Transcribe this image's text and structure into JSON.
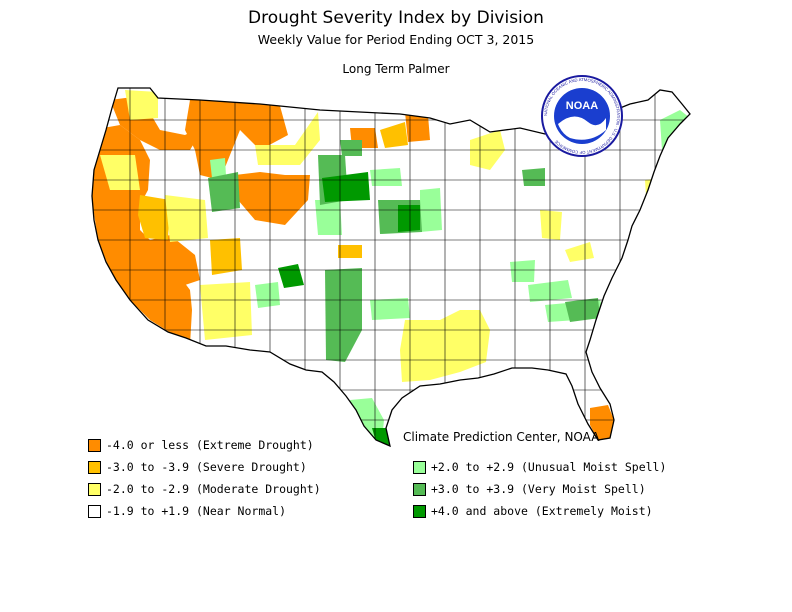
{
  "title": "Drought Severity Index by Division",
  "subtitle": "Weekly Value for Period Ending OCT  3, 2015",
  "index_name": "Long Term Palmer",
  "credit": "Climate Prediction Center, NOAA",
  "logo": {
    "text": "NOAA",
    "ring_text": "NATIONAL OCEANIC AND ATMOSPHERIC ADMINISTRATION · U.S. DEPARTMENT OF COMMERCE"
  },
  "colors": {
    "extreme_drought": "#ff8c00",
    "severe_drought": "#ffc000",
    "moderate_drought": "#ffff66",
    "near_normal": "#ffffff",
    "unusual_moist": "#99ff99",
    "very_moist": "#55bb55",
    "extremely_moist": "#009900"
  },
  "legend": [
    {
      "key": "extreme_drought",
      "label": "-4.0 or less (Extreme Drought)"
    },
    {
      "key": "severe_drought",
      "label": "-3.0 to -3.9 (Severe Drought)"
    },
    {
      "key": "moderate_drought",
      "label": "-2.0 to -2.9 (Moderate Drought)"
    },
    {
      "key": "near_normal",
      "label": "-1.9 to +1.9 (Near Normal)"
    },
    {
      "key": "unusual_moist",
      "label": "+2.0 to +2.9 (Unusual Moist Spell)"
    },
    {
      "key": "very_moist",
      "label": "+3.0 to +3.9 (Very Moist Spell)"
    },
    {
      "key": "extremely_moist",
      "label": "+4.0 and above (Extremely Moist)"
    }
  ]
}
